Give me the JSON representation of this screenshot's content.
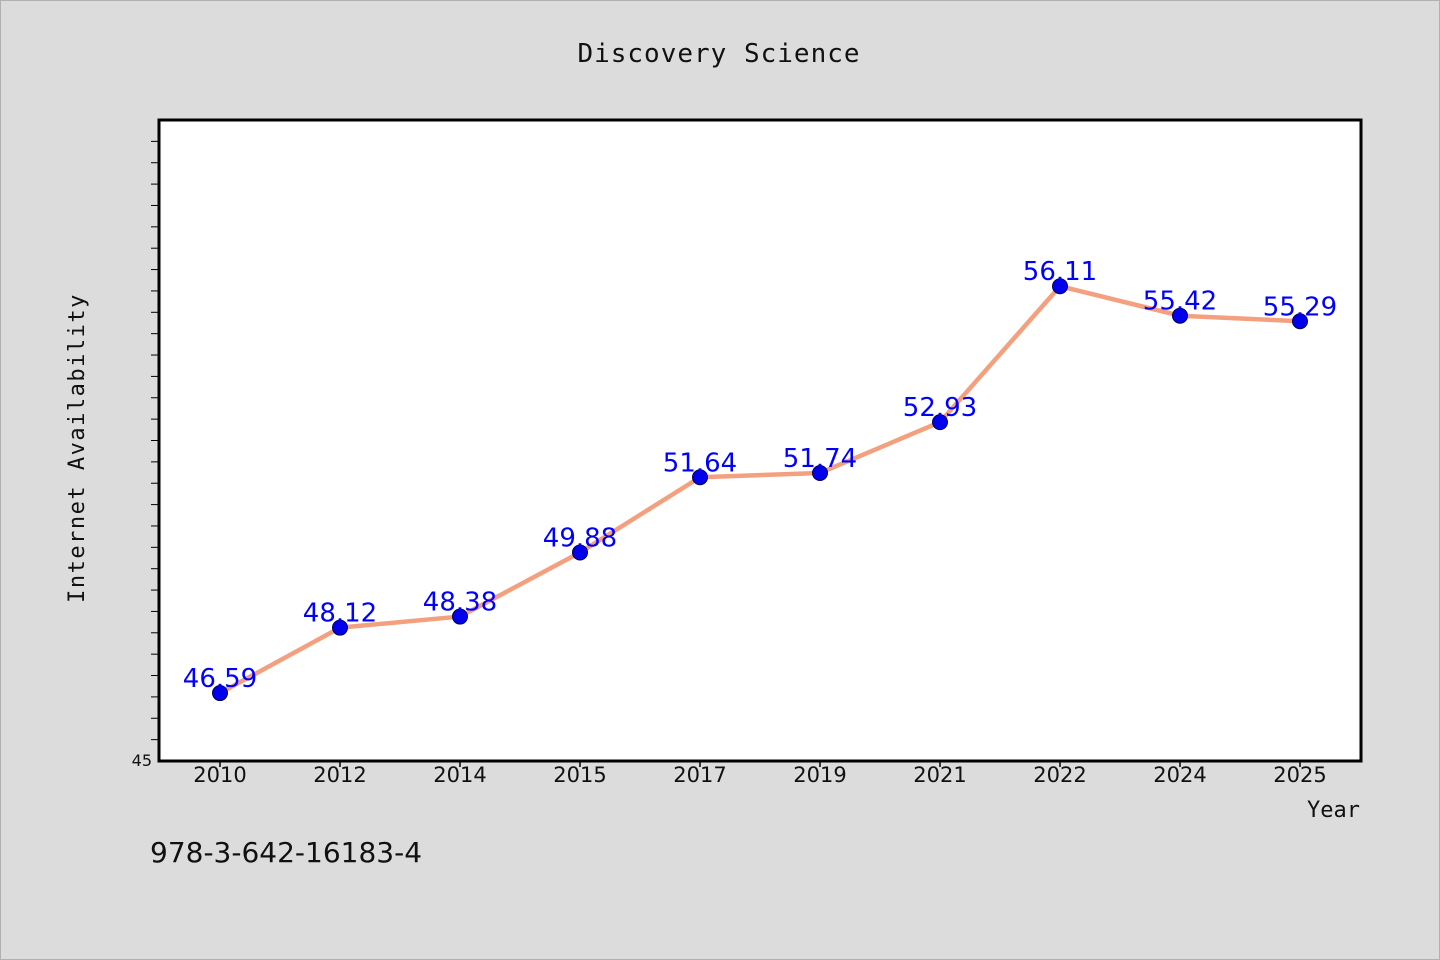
{
  "isbn": "978-3-642-16183-4",
  "chart_data": {
    "type": "line",
    "title": "Discovery Science",
    "xlabel": "Year",
    "ylabel": "Internet Availability",
    "categories": [
      "2010",
      "2012",
      "2014",
      "2015",
      "2017",
      "2019",
      "2021",
      "2022",
      "2024",
      "2025"
    ],
    "series": [
      {
        "values": [
          46.59,
          48.12,
          48.38,
          49.88,
          51.64,
          51.74,
          52.93,
          56.11,
          55.42,
          55.29
        ],
        "line_color": "#f4a07f",
        "marker_color": "#0000ee"
      }
    ],
    "data_labels": [
      "46.59",
      "48.12",
      "48.38",
      "49.88",
      "51.64",
      "51.74",
      "52.93",
      "56.11",
      "55.42",
      "55.29"
    ],
    "ylim": [
      45,
      60
    ],
    "y_tick_labels": [
      "45"
    ],
    "label_color": "#0000ff",
    "grid": false,
    "legend": "none"
  }
}
